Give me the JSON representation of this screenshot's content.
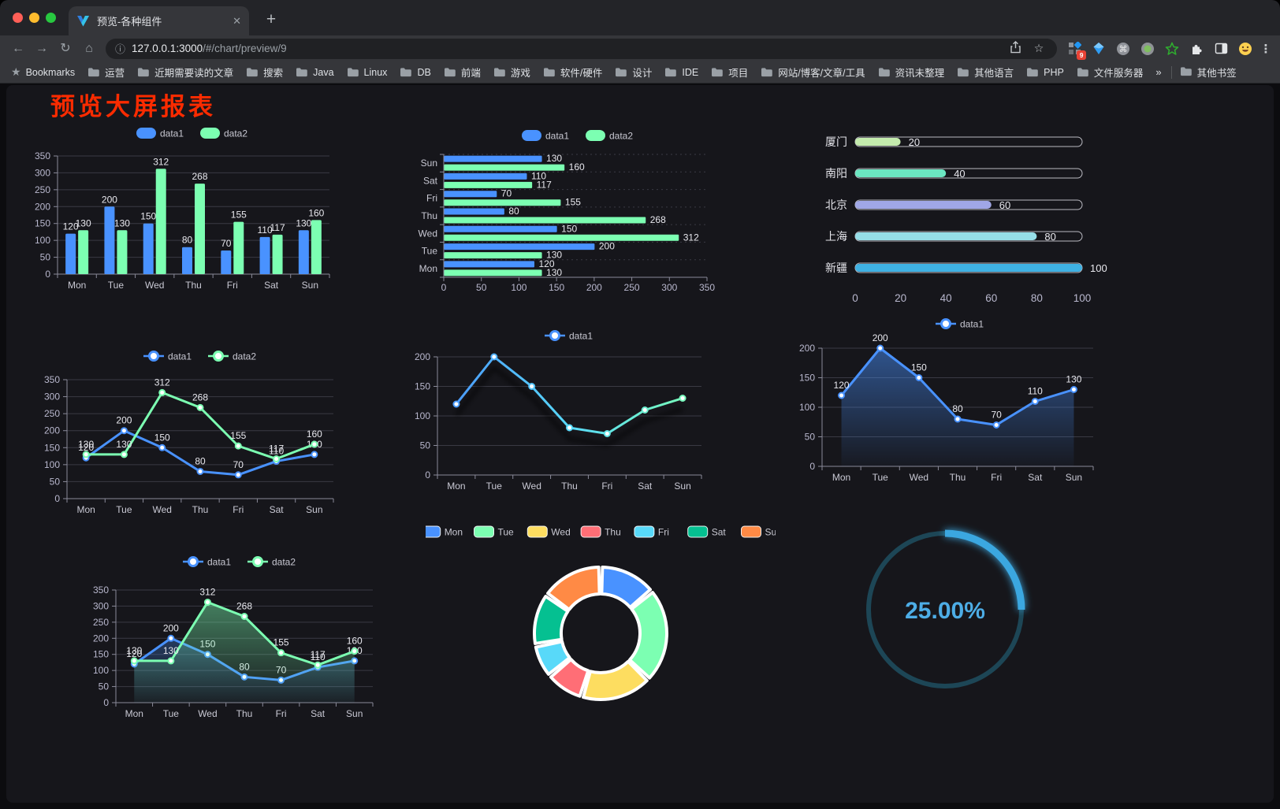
{
  "browser": {
    "traffic_lights": {
      "close": "#ff5f57",
      "minimize": "#febc2e",
      "zoom": "#28c840"
    },
    "tab": {
      "title": "预览-各种组件",
      "close_glyph": "✕",
      "new_tab_glyph": "+"
    },
    "toolbar": {
      "back_glyph": "←",
      "forward_glyph": "→",
      "reload_glyph": "↻",
      "home_glyph": "⌂",
      "url_info_glyph": "ⓘ",
      "url_host": "127.0.0.1:3000",
      "url_path": "/#/chart/preview/9",
      "extension_badge": "9",
      "menu_glyph": "⋮",
      "extension_icons": [
        "share-icon",
        "star-icon",
        "grid-extension-icon",
        "gem-extension-icon",
        "command-extension-icon",
        "record-extension-icon",
        "green-star-extension-icon",
        "puzzle-icon",
        "side-panel-icon",
        "emoji-extension-icon"
      ]
    },
    "bookmarks": {
      "star_label": "Bookmarks",
      "folders": [
        "运营",
        "近期需要读的文章",
        "搜索",
        "Java",
        "Linux",
        "DB",
        "前端",
        "游戏",
        "软件/硬件",
        "设计",
        "IDE",
        "项目",
        "网站/博客/文章/工具",
        "资讯未整理",
        "其他语言",
        "PHP",
        "文件服务器"
      ],
      "overflow_glyph": "»",
      "other_bookmarks": "其他书签"
    }
  },
  "page": {
    "title": "预览大屏报表",
    "title_color": "#fb2b00"
  },
  "theme": {
    "axis_label": "#b9b8ce",
    "axis_line": "#8a8a99",
    "grid_line": "#3a3a44",
    "data_label": "#e8e8ee",
    "legend_text": "#c8c8d2",
    "card_bg": "#16161b"
  },
  "chart_data": [
    {
      "id": "bar-grouped",
      "type": "bar",
      "categories": [
        "Mon",
        "Tue",
        "Wed",
        "Thu",
        "Fri",
        "Sat",
        "Sun"
      ],
      "series": [
        {
          "name": "data1",
          "color": "#4992ff",
          "values": [
            120,
            200,
            150,
            80,
            70,
            110,
            130
          ]
        },
        {
          "name": "data2",
          "color": "#7cffb2",
          "values": [
            130,
            130,
            312,
            268,
            155,
            117,
            160
          ]
        }
      ],
      "ylim": [
        0,
        350
      ],
      "ystep": 50,
      "legend_position": "top"
    },
    {
      "id": "bar-horizontal",
      "type": "bar-h",
      "categories": [
        "Mon",
        "Tue",
        "Wed",
        "Thu",
        "Fri",
        "Sat",
        "Sun"
      ],
      "series": [
        {
          "name": "data1",
          "color": "#4992ff",
          "values": [
            120,
            200,
            150,
            80,
            70,
            110,
            130
          ]
        },
        {
          "name": "data2",
          "color": "#7cffb2",
          "values": [
            130,
            130,
            312,
            268,
            155,
            117,
            160
          ]
        }
      ],
      "xlim": [
        0,
        350
      ],
      "xstep": 50,
      "legend_position": "top"
    },
    {
      "id": "capsule-bars",
      "type": "bar-capsule",
      "categories": [
        "厦门",
        "南阳",
        "北京",
        "上海",
        "新疆"
      ],
      "values": [
        20,
        40,
        60,
        80,
        100
      ],
      "colors": [
        "#c4ebad",
        "#6be6c1",
        "#a0a7e6",
        "#96dee8",
        "#3fb1e3"
      ],
      "xlim": [
        0,
        100
      ],
      "xticks": [
        0,
        20,
        40,
        60,
        80,
        100
      ]
    },
    {
      "id": "line-two-series",
      "type": "line",
      "categories": [
        "Mon",
        "Tue",
        "Wed",
        "Thu",
        "Fri",
        "Sat",
        "Sun"
      ],
      "series": [
        {
          "name": "data1",
          "color": "#4992ff",
          "values": [
            120,
            200,
            150,
            80,
            70,
            110,
            130
          ]
        },
        {
          "name": "data2",
          "color": "#7cffb2",
          "values": [
            130,
            130,
            312,
            268,
            155,
            117,
            160
          ]
        }
      ],
      "ylim": [
        0,
        350
      ],
      "ystep": 50,
      "labels": true
    },
    {
      "id": "line-gradient-shadow",
      "type": "line",
      "categories": [
        "Mon",
        "Tue",
        "Wed",
        "Thu",
        "Fri",
        "Sat",
        "Sun"
      ],
      "series": [
        {
          "name": "data1",
          "gradient": [
            "#4992ff",
            "#58d9f9",
            "#7cffb2"
          ],
          "color": "#4992ff",
          "values": [
            120,
            200,
            150,
            80,
            70,
            110,
            130
          ]
        }
      ],
      "ylim": [
        0,
        200
      ],
      "ystep": 50,
      "labels": false,
      "shadow": true
    },
    {
      "id": "line-area-single",
      "type": "line",
      "categories": [
        "Mon",
        "Tue",
        "Wed",
        "Thu",
        "Fri",
        "Sat",
        "Sun"
      ],
      "series": [
        {
          "name": "data1",
          "color": "#4992ff",
          "area": true,
          "values": [
            120,
            200,
            150,
            80,
            70,
            110,
            130
          ]
        }
      ],
      "ylim": [
        0,
        200
      ],
      "ystep": 50,
      "labels": true
    },
    {
      "id": "line-area-two",
      "type": "line",
      "categories": [
        "Mon",
        "Tue",
        "Wed",
        "Thu",
        "Fri",
        "Sat",
        "Sun"
      ],
      "series": [
        {
          "name": "data1",
          "color": "#4992ff",
          "area": true,
          "values": [
            120,
            200,
            150,
            80,
            70,
            110,
            130
          ]
        },
        {
          "name": "data2",
          "color": "#7cffb2",
          "area": true,
          "values": [
            130,
            130,
            312,
            268,
            155,
            117,
            160
          ]
        }
      ],
      "ylim": [
        0,
        350
      ],
      "ystep": 50,
      "labels": true
    },
    {
      "id": "donut",
      "type": "pie",
      "categories": [
        "Mon",
        "Tue",
        "Wed",
        "Thu",
        "Fri",
        "Sat",
        "Sun"
      ],
      "values": [
        120,
        200,
        150,
        80,
        70,
        110,
        130
      ],
      "colors": [
        "#4992ff",
        "#7cffb2",
        "#fddd60",
        "#ff6e76",
        "#58d9f9",
        "#05c091",
        "#ff8a45"
      ],
      "legend_position": "top"
    },
    {
      "id": "gauge",
      "type": "gauge",
      "value": 25,
      "label": "25.00%",
      "arc_color": "#3ba7e0",
      "track_color": "#1d4656",
      "text_color": "#4dade6"
    }
  ]
}
